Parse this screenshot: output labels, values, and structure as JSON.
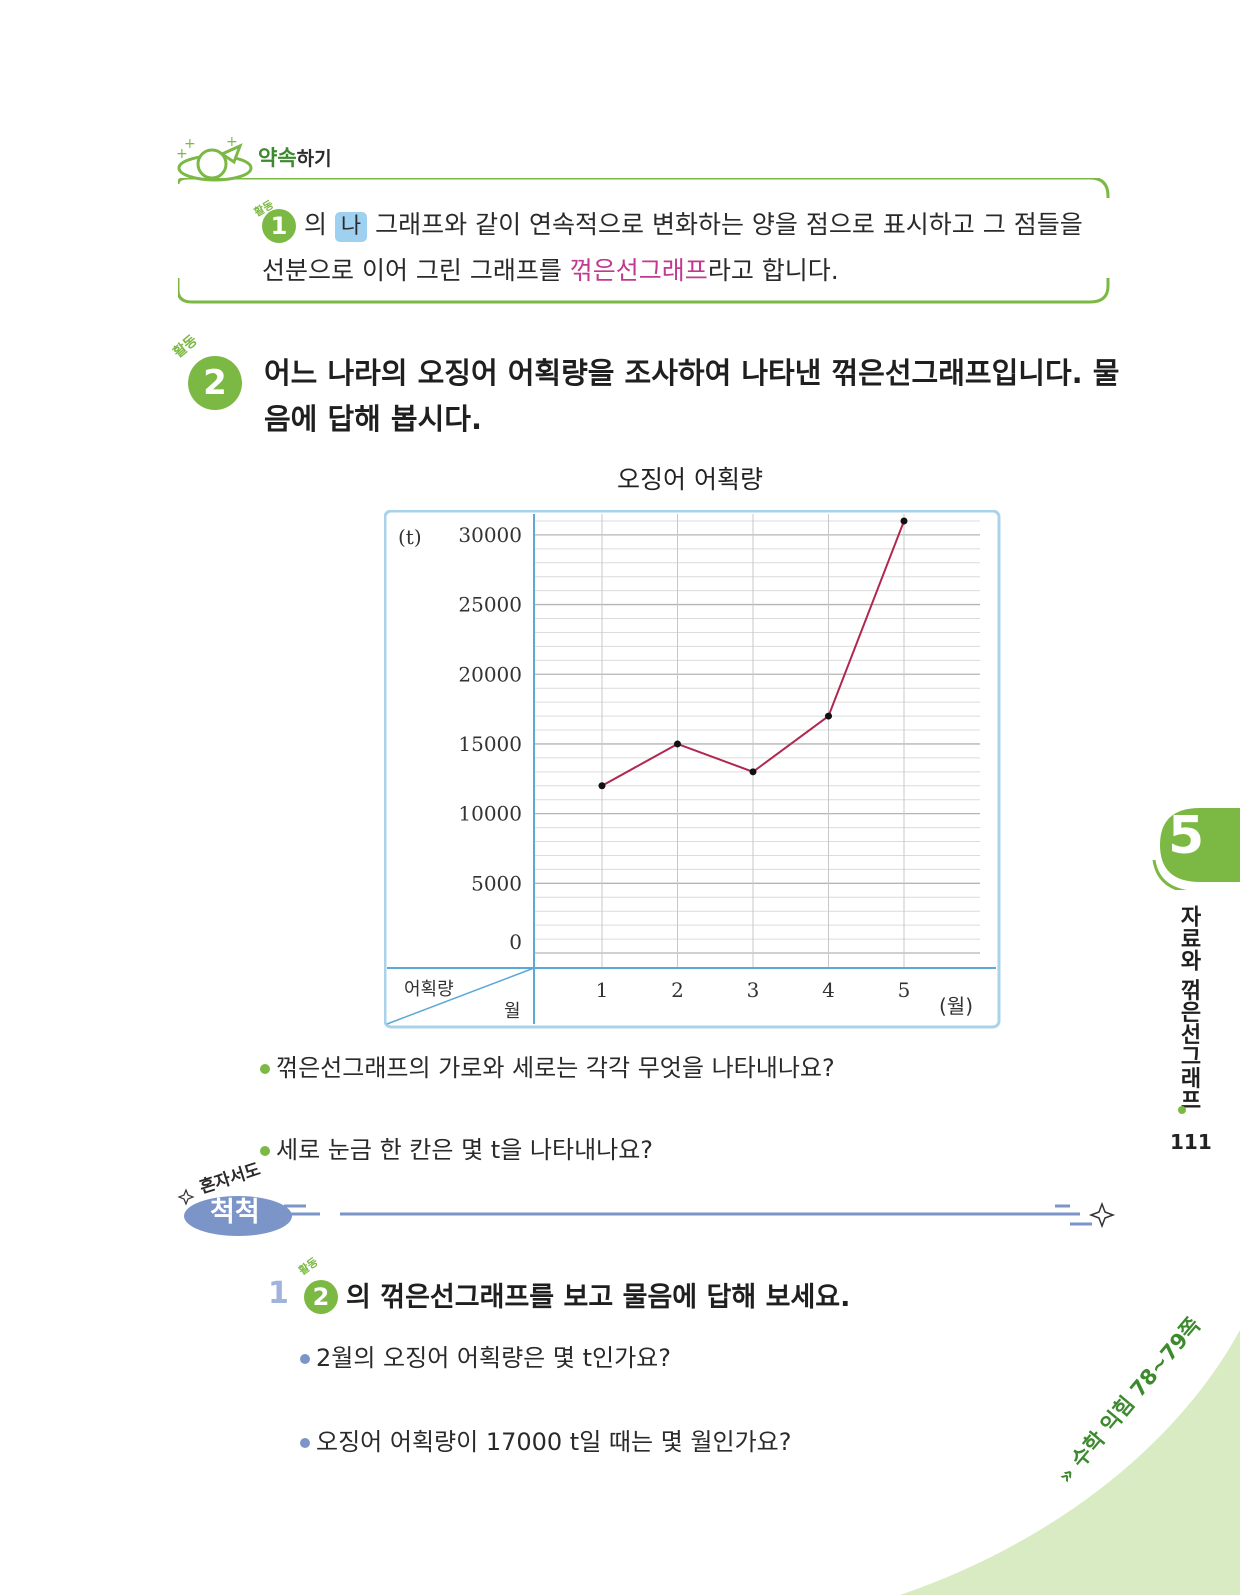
{
  "promise": {
    "title_green": "약속",
    "title_rest": "하기",
    "line1_badge_label": "활동",
    "line1_badge_num": "1",
    "line1_a": "의",
    "line1_pill": "나",
    "line1_b": "그래프와 같이 연속적으로 변화하는 양을 점으로 표시하고 그 점들을",
    "line2_a": "선분으로 이어 그린 그래프를",
    "line2_pink": "꺾은선그래프",
    "line2_b": "라고 합니다."
  },
  "activity2": {
    "label": "활동",
    "num": "2",
    "title": "어느 나라의 오징어 어획량을 조사하여 나타낸 꺾은선그래프입니다. 물음에 답해 봅시다."
  },
  "chart_data": {
    "type": "line",
    "title": "오징어 어획량",
    "y_unit": "(t)",
    "x_unit": "(월)",
    "corner_top": "어획량",
    "corner_bottom": "월",
    "x": [
      "1",
      "2",
      "3",
      "4",
      "5"
    ],
    "y_ticks": [
      "30000",
      "25000",
      "20000",
      "15000",
      "10000",
      "5000",
      "0"
    ],
    "ylim": [
      0,
      31500
    ],
    "series": [
      {
        "values": [
          12000,
          15000,
          13000,
          17000,
          31000
        ]
      }
    ],
    "line_color": "#b0284f",
    "grid": true
  },
  "questions": {
    "q1": "꺾은선그래프의 가로와 세로는 각각 무엇을 나타내나요?",
    "q2": "세로 눈금 한 칸은 몇 t을 나타내나요?"
  },
  "alone": {
    "small": "혼자서도",
    "big": "척척"
  },
  "practice": {
    "num": "1",
    "badge_label": "활동",
    "badge_num": "2",
    "title": "의 꺾은선그래프를 보고 물음에 답해 보세요.",
    "q1": "2월의 오징어 어획량은 몇 t인가요?",
    "q2": "오징어 어획량이 17000 t일 때는 몇 월인가요?"
  },
  "side": {
    "chapter": "5",
    "chapter_title": "자료와 꺾은선그래프",
    "page": "111",
    "corner_ref": "» 수학 익힘 78~79쪽"
  },
  "colors": {
    "green": "#7cb944",
    "pink": "#c03a8f",
    "blue_frame": "#a9d3ea",
    "line": "#b0284f"
  }
}
